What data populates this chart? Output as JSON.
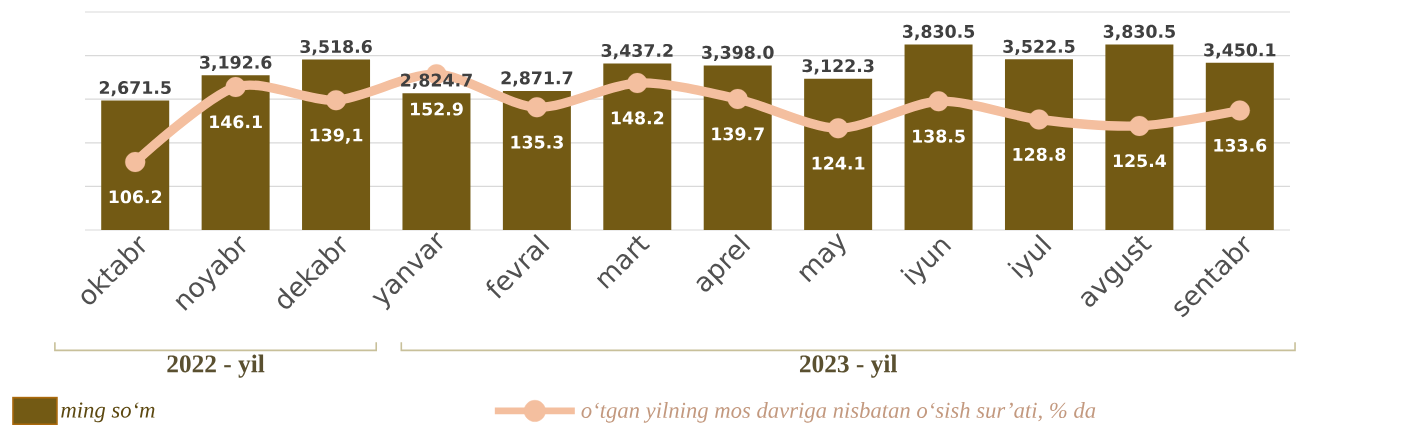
{
  "chart_data": {
    "type": "bar",
    "categories": [
      "oktabr",
      "noyabr",
      "dekabr",
      "yanvar",
      "fevral",
      "mart",
      "aprel",
      "may",
      "iyun",
      "iyul",
      "avgust",
      "sentabr"
    ],
    "series": [
      {
        "name": "ming so‘m",
        "color": "#735a14",
        "values": [
          2671.5,
          3192.6,
          3518.6,
          2824.7,
          2871.7,
          3437.2,
          3398.0,
          3122.3,
          3830.5,
          3522.5,
          3830.5,
          3450.1
        ],
        "value_labels": [
          "2,671.5",
          "3,192.6",
          "3,518.6",
          "2,824.7",
          "2,871.7",
          "3,437.2",
          "3,398.0",
          "3,122.3",
          "3,830.5",
          "3,522.5",
          "3,830.5",
          "3,450.1"
        ]
      },
      {
        "name": "o‘tgan yilning mos davriga nisbatan o‘sish sur’ati, % da",
        "type": "line",
        "axis": "y2",
        "color": "#f4bf9f",
        "marker": "circle",
        "values": [
          106.2,
          146.1,
          139.1,
          152.9,
          135.3,
          148.2,
          139.7,
          124.1,
          138.5,
          128.8,
          125.4,
          133.6
        ],
        "value_labels": [
          "106.2",
          "146.1",
          "139,1",
          "152.9",
          "135.3",
          "148.2",
          "139.7",
          "124.1",
          "138.5",
          "128.8",
          "125.4",
          "133.6"
        ]
      }
    ],
    "ylim": [
      0,
      4500
    ],
    "y2lim": [
      70,
      186
    ],
    "tick_labels": "x",
    "grid": "y",
    "legend": "bottom",
    "annotations": [
      "2022 - yil",
      "2023 - yil"
    ]
  }
}
